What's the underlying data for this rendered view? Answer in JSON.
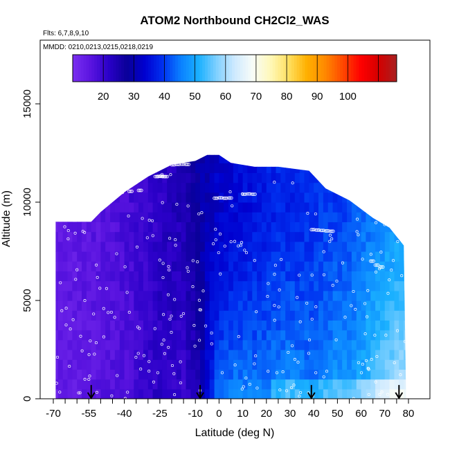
{
  "chart_data": {
    "type": "heatmap",
    "title": "ATOM2 Northbound CH2Cl2_WAS",
    "subtitle_flights": "Flts: 6,7,8,9,10",
    "subtitle_dates": "MMDD: 0210,0213,0215,0218,0219",
    "xlabel": "Latitude (deg N)",
    "ylabel": "Altitude (m)",
    "xlim": [
      -70,
      82
    ],
    "ylim": [
      0,
      18000
    ],
    "x_ticks": [
      -70,
      -55,
      -40,
      -25,
      -10,
      0,
      10,
      20,
      30,
      40,
      50,
      60,
      70,
      80
    ],
    "x_minor_ticks": [
      -65,
      -60,
      -50,
      -45,
      -35,
      -30,
      -20,
      -15,
      -5,
      5,
      15,
      25,
      35,
      45,
      55,
      65,
      75
    ],
    "y_ticks": [
      0,
      5000,
      10000,
      15000
    ],
    "colorbar": {
      "ticks": [
        20,
        30,
        40,
        50,
        60,
        70,
        80,
        90,
        100
      ],
      "range": [
        10,
        116
      ],
      "colors": [
        "#7a2ff0",
        "#5a14e0",
        "#2a00c8",
        "#0a0098",
        "#0000d0",
        "#0030f0",
        "#0a80ff",
        "#1ab0ff",
        "#80d0ff",
        "#cfeaff",
        "#f8fcf8",
        "#fff8b8",
        "#ffe060",
        "#ffb000",
        "#ff8a00",
        "#ff4800",
        "#ff0000",
        "#d40000",
        "#a82020"
      ]
    },
    "grid": false,
    "legend": "none",
    "arrows_latitude": [
      -54,
      -8,
      39,
      76
    ],
    "envelope": [
      [
        -69,
        9000
      ],
      [
        -54,
        9000
      ],
      [
        -50,
        9500
      ],
      [
        -45,
        10000
      ],
      [
        -40,
        10500
      ],
      [
        -30,
        11300
      ],
      [
        -20,
        11900
      ],
      [
        -10,
        12100
      ],
      [
        -5,
        12400
      ],
      [
        0,
        12400
      ],
      [
        5,
        12000
      ],
      [
        15,
        11800
      ],
      [
        25,
        11800
      ],
      [
        38,
        11600
      ],
      [
        45,
        10700
      ],
      [
        55,
        10100
      ],
      [
        65,
        9200
      ],
      [
        72,
        8700
      ],
      [
        78,
        7800
      ],
      [
        79,
        0
      ],
      [
        -69,
        0
      ]
    ],
    "column_profile": {
      "latitude": [
        -69,
        -60,
        -50,
        -40,
        -30,
        -25,
        -20,
        -15,
        -10,
        -5,
        0,
        5,
        10,
        15,
        20,
        25,
        30,
        35,
        40,
        45,
        50,
        55,
        60,
        65,
        70,
        75,
        79
      ],
      "surface_value": [
        14,
        15,
        16,
        17,
        21,
        22,
        21,
        20,
        22,
        35,
        45,
        46,
        47,
        46,
        46,
        47,
        48,
        47,
        46,
        48,
        50,
        49,
        52,
        56,
        59,
        62,
        62
      ],
      "top_value": [
        15,
        15,
        16,
        18,
        20,
        22,
        23,
        24,
        28,
        31,
        33,
        34,
        35,
        36,
        37,
        38,
        38,
        38,
        39,
        40,
        40,
        41,
        43,
        45,
        47,
        48,
        49
      ]
    },
    "flight_tracks": [
      {
        "x": [
          -55,
          -53,
          -51,
          -49
        ],
        "y": [
          9550,
          9680,
          9800,
          9900
        ]
      },
      {
        "x": [
          -46,
          -42,
          -38,
          -34
        ],
        "y": [
          10400,
          10500,
          10550,
          10600
        ]
      },
      {
        "x": [
          -27,
          -26,
          -25,
          -24,
          -23
        ],
        "y": [
          11300,
          11310,
          11320,
          11300,
          11300
        ]
      },
      {
        "x": [
          -20,
          -18,
          -16,
          -14
        ],
        "y": [
          11900,
          11920,
          11930,
          11920
        ]
      },
      {
        "x": [
          -2,
          0,
          2,
          4
        ],
        "y": [
          10200,
          10220,
          10200,
          10210
        ]
      },
      {
        "x": [
          10,
          12,
          14
        ],
        "y": [
          10400,
          10420,
          10400
        ]
      },
      {
        "x": [
          39,
          41,
          43,
          45,
          47
        ],
        "y": [
          8600,
          8580,
          8560,
          8540,
          8520
        ]
      },
      {
        "x": [
          64,
          66,
          68
        ],
        "y": [
          7000,
          6800,
          6700
        ]
      }
    ],
    "sample_count": 260,
    "high_values_near_surface": [
      60,
      70
    ]
  }
}
